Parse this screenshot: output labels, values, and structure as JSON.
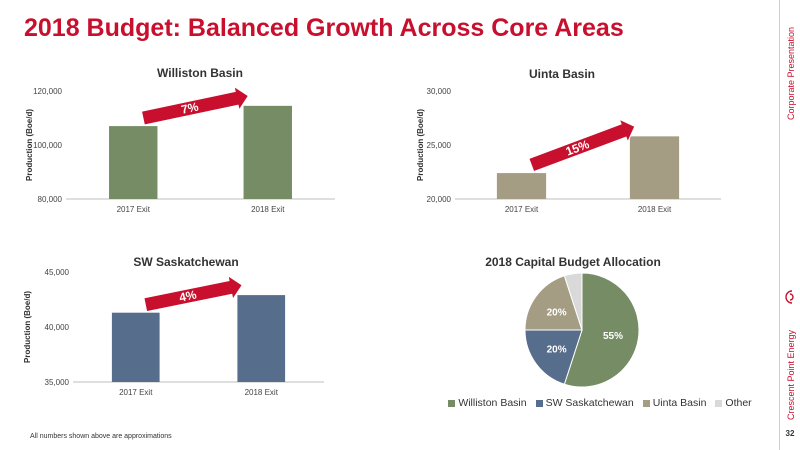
{
  "page": {
    "title": "2018 Budget: Balanced Growth Across Core Areas",
    "footnote": "All numbers shown above are approximations",
    "page_number": "32",
    "sidebar_top": "Corporate Presentation",
    "sidebar_bottom": "Crescent Point Energy",
    "accent_color": "#c8102e"
  },
  "chart_data": [
    {
      "type": "bar",
      "title": "Williston Basin",
      "ylabel": "Production (Boe/d)",
      "categories": [
        "2017 Exit",
        "2018 Exit"
      ],
      "values": [
        107000,
        114500
      ],
      "ylim": [
        80000,
        120000
      ],
      "yticks": [
        "80,000",
        "100,000",
        "120,000"
      ],
      "color": "#758c65",
      "growth_label": "7%"
    },
    {
      "type": "bar",
      "title": "Uinta Basin",
      "ylabel": "Production (Boe/d)",
      "categories": [
        "2017 Exit",
        "2018 Exit"
      ],
      "values": [
        22400,
        25800
      ],
      "ylim": [
        20000,
        30000
      ],
      "yticks": [
        "20,000",
        "25,000",
        "30,000"
      ],
      "color": "#a49d84",
      "growth_label": "15%"
    },
    {
      "type": "bar",
      "title": "SW Saskatchewan",
      "ylabel": "Production (Boe/d)",
      "categories": [
        "2017 Exit",
        "2018 Exit"
      ],
      "values": [
        41300,
        42900
      ],
      "ylim": [
        35000,
        45000
      ],
      "yticks": [
        "35,000",
        "40,000",
        "45,000"
      ],
      "color": "#576d8c",
      "growth_label": "4%"
    },
    {
      "type": "pie",
      "title": "2018 Capital Budget Allocation",
      "labels": [
        "Williston Basin",
        "SW Saskatchewan",
        "Uinta Basin",
        "Other"
      ],
      "values": [
        55,
        20,
        20,
        5
      ],
      "data_labels": [
        "55%",
        "20%",
        "20%",
        ""
      ],
      "colors": [
        "#758c65",
        "#576d8c",
        "#a49d84",
        "#d9d9d9"
      ],
      "legend_position": "bottom"
    }
  ]
}
